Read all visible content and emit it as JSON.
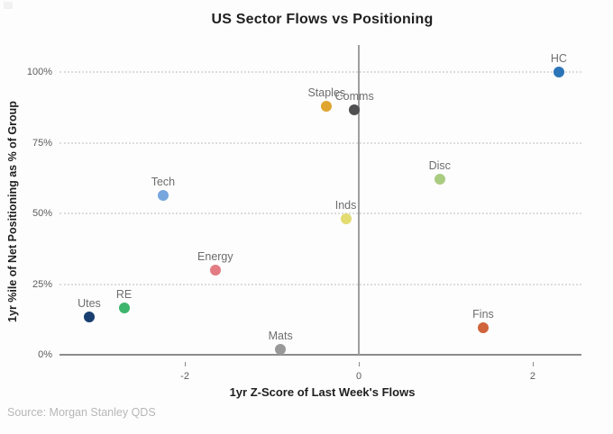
{
  "chart_data": {
    "type": "scatter",
    "title": "US Sector Flows vs Positioning",
    "xlabel": "1yr Z-Score of Last Week's Flows",
    "ylabel": "1yr %ile of Net Positioning as % of Group",
    "source": "Source: Morgan Stanley QDS",
    "xlim": [
      -3.4,
      2.56
    ],
    "ylim": [
      0,
      100
    ],
    "x_ticks": [
      {
        "label": "-2",
        "value": -2
      },
      {
        "label": "0",
        "value": 0
      },
      {
        "label": "2",
        "value": 2
      }
    ],
    "y_ticks": [
      {
        "label": "0%",
        "value": 0
      },
      {
        "label": "25%",
        "value": 25
      },
      {
        "label": "50%",
        "value": 50
      },
      {
        "label": "75%",
        "value": 75
      },
      {
        "label": "100%",
        "value": 100
      }
    ],
    "grid": "horizontal dotted gridlines at 25/50/75/100; solid baseline at 0%; solid vertical line at x=0",
    "legend": "none",
    "points": [
      {
        "label": "HC",
        "x": 2.3,
        "y": 100,
        "color": "#2b74b8"
      },
      {
        "label": "Staples",
        "x": -0.37,
        "y": 88,
        "color": "#dfa52e"
      },
      {
        "label": "Comms",
        "x": -0.05,
        "y": 86.5,
        "color": "#4f4f52"
      },
      {
        "label": "Disc",
        "x": 0.93,
        "y": 62,
        "color": "#a9cc80"
      },
      {
        "label": "Tech",
        "x": -2.25,
        "y": 56.5,
        "color": "#77a5dd"
      },
      {
        "label": "Inds",
        "x": -0.15,
        "y": 48,
        "color": "#e2dc72"
      },
      {
        "label": "Energy",
        "x": -1.65,
        "y": 30,
        "color": "#e27b82"
      },
      {
        "label": "RE",
        "x": -2.7,
        "y": 16.5,
        "color": "#3eb56d"
      },
      {
        "label": "Utes",
        "x": -3.1,
        "y": 13.5,
        "color": "#183f70"
      },
      {
        "label": "Mats",
        "x": -0.9,
        "y": 2,
        "color": "#999999"
      },
      {
        "label": "Fins",
        "x": 1.43,
        "y": 9.5,
        "color": "#d0643c"
      }
    ]
  }
}
